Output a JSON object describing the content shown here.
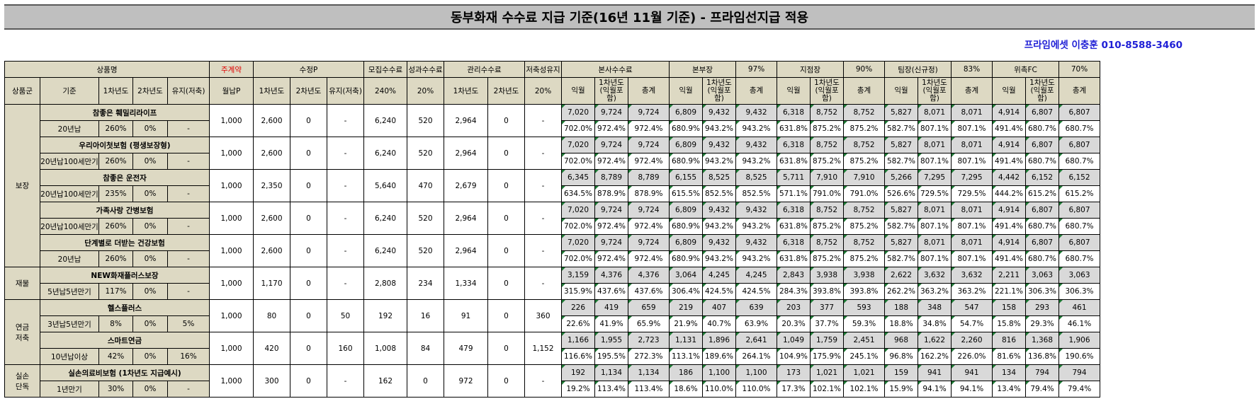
{
  "title": "동부화재 수수료 지급 기준(16년 11월 기준) - 프라임선지급 적용",
  "contact": "프라임에셋 이충훈 010-8588-3460",
  "header": {
    "row1": {
      "product_name": "상품명",
      "main_contract_label": "주계약",
      "revised_p": "수정P",
      "recruit_fee": "모집수수료",
      "perf_fee": "성과수수료",
      "mgmt_fee": "관리수수료",
      "savings_maint": "저축성유지",
      "hq_fee": "본사수수료",
      "division_head": "본부장",
      "division_pct": "97%",
      "branch_head": "지점장",
      "branch_pct": "90%",
      "team_lead": "팀장(신규정)",
      "team_pct": "83%",
      "fc": "위촉FC",
      "fc_pct": "70%"
    },
    "row2": {
      "group": "상품군",
      "standard": "기준",
      "y1": "1차년도",
      "y2": "2차년도",
      "maint": "유지(저축)",
      "monthly_p": "월납P",
      "rp_y1": "1차년도",
      "rp_y2": "2차년도",
      "rp_maint": "유지(저축)",
      "recruit_pct": "240%",
      "perf_pct": "20%",
      "mg_y1": "1차년도",
      "mg_y2": "2차년도",
      "sav_pct": "20%",
      "next_month": "익월",
      "y1_incl": "1차년도\n(익월포함)",
      "total": "총계"
    }
  },
  "categories": [
    {
      "name": "보장",
      "rows": 5
    },
    {
      "name": "재물",
      "rows": 1
    },
    {
      "name": "연금\n저축",
      "rows": 2
    },
    {
      "name": "실손\n단독",
      "rows": 1
    }
  ],
  "products": [
    {
      "name": "참좋은 훼밀리라이프",
      "standard": "20년납",
      "y1": "260%",
      "y2": "0%",
      "maint": "-",
      "premium": "1,000",
      "rp": [
        "2,600",
        "0",
        "-"
      ],
      "recruit": "6,240",
      "perf": "520",
      "mgmt": [
        "2,964",
        "0"
      ],
      "sav": "-",
      "amounts": [
        "7,020",
        "9,724",
        "9,724",
        "6,809",
        "9,432",
        "9,432",
        "6,318",
        "8,752",
        "8,752",
        "5,827",
        "8,071",
        "8,071",
        "4,914",
        "6,807",
        "6,807"
      ],
      "pcts": [
        "702.0%",
        "972.4%",
        "972.4%",
        "680.9%",
        "943.2%",
        "943.2%",
        "631.8%",
        "875.2%",
        "875.2%",
        "582.7%",
        "807.1%",
        "807.1%",
        "491.4%",
        "680.7%",
        "680.7%"
      ]
    },
    {
      "name": "우리아이첫보험 (평생보장형)",
      "standard": "20년납100세만기",
      "y1": "260%",
      "y2": "0%",
      "maint": "-",
      "premium": "1,000",
      "rp": [
        "2,600",
        "0",
        "-"
      ],
      "recruit": "6,240",
      "perf": "520",
      "mgmt": [
        "2,964",
        "0"
      ],
      "sav": "-",
      "amounts": [
        "7,020",
        "9,724",
        "9,724",
        "6,809",
        "9,432",
        "9,432",
        "6,318",
        "8,752",
        "8,752",
        "5,827",
        "8,071",
        "8,071",
        "4,914",
        "6,807",
        "6,807"
      ],
      "pcts": [
        "702.0%",
        "972.4%",
        "972.4%",
        "680.9%",
        "943.2%",
        "943.2%",
        "631.8%",
        "875.2%",
        "875.2%",
        "582.7%",
        "807.1%",
        "807.1%",
        "491.4%",
        "680.7%",
        "680.7%"
      ]
    },
    {
      "name": "참좋은 운전자",
      "standard": "20년납100세만기",
      "y1": "235%",
      "y2": "0%",
      "maint": "-",
      "premium": "1,000",
      "rp": [
        "2,350",
        "0",
        "-"
      ],
      "recruit": "5,640",
      "perf": "470",
      "mgmt": [
        "2,679",
        "0"
      ],
      "sav": "-",
      "amounts": [
        "6,345",
        "8,789",
        "8,789",
        "6,155",
        "8,525",
        "8,525",
        "5,711",
        "7,910",
        "7,910",
        "5,266",
        "7,295",
        "7,295",
        "4,442",
        "6,152",
        "6,152"
      ],
      "pcts": [
        "634.5%",
        "878.9%",
        "878.9%",
        "615.5%",
        "852.5%",
        "852.5%",
        "571.1%",
        "791.0%",
        "791.0%",
        "526.6%",
        "729.5%",
        "729.5%",
        "444.2%",
        "615.2%",
        "615.2%"
      ]
    },
    {
      "name": "가족사랑 간병보험",
      "standard": "20년납100세만기",
      "y1": "260%",
      "y2": "0%",
      "maint": "-",
      "premium": "1,000",
      "rp": [
        "2,600",
        "0",
        "-"
      ],
      "recruit": "6,240",
      "perf": "520",
      "mgmt": [
        "2,964",
        "0"
      ],
      "sav": "-",
      "amounts": [
        "7,020",
        "9,724",
        "9,724",
        "6,809",
        "9,432",
        "9,432",
        "6,318",
        "8,752",
        "8,752",
        "5,827",
        "8,071",
        "8,071",
        "4,914",
        "6,807",
        "6,807"
      ],
      "pcts": [
        "702.0%",
        "972.4%",
        "972.4%",
        "680.9%",
        "943.2%",
        "943.2%",
        "631.8%",
        "875.2%",
        "875.2%",
        "582.7%",
        "807.1%",
        "807.1%",
        "491.4%",
        "680.7%",
        "680.7%"
      ]
    },
    {
      "name": "단계별로 더받는 건강보험",
      "standard": "20년납",
      "y1": "260%",
      "y2": "0%",
      "maint": "-",
      "premium": "1,000",
      "rp": [
        "2,600",
        "0",
        "-"
      ],
      "recruit": "6,240",
      "perf": "520",
      "mgmt": [
        "2,964",
        "0"
      ],
      "sav": "-",
      "amounts": [
        "7,020",
        "9,724",
        "9,724",
        "6,809",
        "9,432",
        "9,432",
        "6,318",
        "8,752",
        "8,752",
        "5,827",
        "8,071",
        "8,071",
        "4,914",
        "6,807",
        "6,807"
      ],
      "pcts": [
        "702.0%",
        "972.4%",
        "972.4%",
        "680.9%",
        "943.2%",
        "943.2%",
        "631.8%",
        "875.2%",
        "875.2%",
        "582.7%",
        "807.1%",
        "807.1%",
        "491.4%",
        "680.7%",
        "680.7%"
      ]
    },
    {
      "name": "NEW화재플러스보장",
      "standard": "5년납5년만기",
      "y1": "117%",
      "y2": "0%",
      "maint": "-",
      "premium": "1,000",
      "rp": [
        "1,170",
        "0",
        "-"
      ],
      "recruit": "2,808",
      "perf": "234",
      "mgmt": [
        "1,334",
        "0"
      ],
      "sav": "-",
      "amounts": [
        "3,159",
        "4,376",
        "4,376",
        "3,064",
        "4,245",
        "4,245",
        "2,843",
        "3,938",
        "3,938",
        "2,622",
        "3,632",
        "3,632",
        "2,211",
        "3,063",
        "3,063"
      ],
      "pcts": [
        "315.9%",
        "437.6%",
        "437.6%",
        "306.4%",
        "424.5%",
        "424.5%",
        "284.3%",
        "393.8%",
        "393.8%",
        "262.2%",
        "363.2%",
        "363.2%",
        "221.1%",
        "306.3%",
        "306.3%"
      ]
    },
    {
      "name": "헬스플러스",
      "standard": "3년납5년만기",
      "y1": "8%",
      "y2": "0%",
      "maint": "5%",
      "premium": "1,000",
      "rp": [
        "80",
        "0",
        "50"
      ],
      "recruit": "192",
      "perf": "16",
      "mgmt": [
        "91",
        "0"
      ],
      "sav": "360",
      "amounts": [
        "226",
        "419",
        "659",
        "219",
        "407",
        "639",
        "203",
        "377",
        "593",
        "188",
        "348",
        "547",
        "158",
        "293",
        "461"
      ],
      "pcts": [
        "22.6%",
        "41.9%",
        "65.9%",
        "21.9%",
        "40.7%",
        "63.9%",
        "20.3%",
        "37.7%",
        "59.3%",
        "18.8%",
        "34.8%",
        "54.7%",
        "15.8%",
        "29.3%",
        "46.1%"
      ]
    },
    {
      "name": "스마트연금",
      "standard": "10년납이상",
      "y1": "42%",
      "y2": "0%",
      "maint": "16%",
      "premium": "1,000",
      "rp": [
        "420",
        "0",
        "160"
      ],
      "recruit": "1,008",
      "perf": "84",
      "mgmt": [
        "479",
        "0"
      ],
      "sav": "1,152",
      "amounts": [
        "1,166",
        "1,955",
        "2,723",
        "1,131",
        "1,896",
        "2,641",
        "1,049",
        "1,759",
        "2,451",
        "968",
        "1,622",
        "2,260",
        "816",
        "1,368",
        "1,906"
      ],
      "pcts": [
        "116.6%",
        "195.5%",
        "272.3%",
        "113.1%",
        "189.6%",
        "264.1%",
        "104.9%",
        "175.9%",
        "245.1%",
        "96.8%",
        "162.2%",
        "226.0%",
        "81.6%",
        "136.8%",
        "190.6%"
      ]
    },
    {
      "name": "실손의료비보험 (1차년도 지급예시)",
      "standard": "1년만기",
      "y1": "30%",
      "y2": "0%",
      "maint": "-",
      "premium": "1,000",
      "rp": [
        "300",
        "0",
        "-"
      ],
      "recruit": "162",
      "perf": "0",
      "mgmt": [
        "972",
        "0"
      ],
      "sav": "-",
      "amounts": [
        "192",
        "1,134",
        "1,134",
        "186",
        "1,100",
        "1,100",
        "173",
        "1,021",
        "1,021",
        "159",
        "941",
        "941",
        "134",
        "794",
        "794"
      ],
      "pcts": [
        "19.2%",
        "113.4%",
        "113.4%",
        "18.6%",
        "110.0%",
        "110.0%",
        "17.3%",
        "102.1%",
        "102.1%",
        "15.9%",
        "94.1%",
        "94.1%",
        "13.4%",
        "79.4%",
        "79.4%"
      ]
    }
  ],
  "colors": {
    "header_bg": "#ddd9c3",
    "amount_bg": "#d9d9d9",
    "title_bg": "#bfbfbf",
    "contact": "#1f1fd6",
    "accent_red": "#e00000",
    "marker_green": "#1e7b35"
  }
}
